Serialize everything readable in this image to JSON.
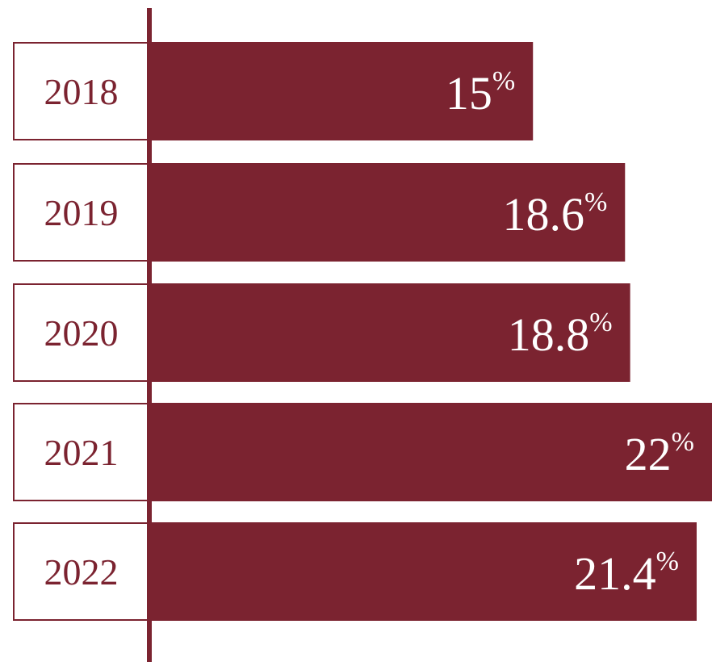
{
  "chart_data": {
    "type": "bar",
    "orientation": "horizontal",
    "categories": [
      "2018",
      "2019",
      "2020",
      "2021",
      "2022"
    ],
    "values": [
      15,
      18.6,
      18.8,
      22,
      21.4
    ],
    "value_labels": [
      "15",
      "18.6",
      "18.8",
      "22",
      "21.4"
    ],
    "unit": "%",
    "title": "",
    "xlabel": "",
    "ylabel": "",
    "xlim": [
      0,
      22
    ],
    "grid": false,
    "legend": "none",
    "colors": {
      "bar": "#7b2330",
      "label_text": "#7b2330",
      "value_text": "#ffffff",
      "axis": "#7b2330"
    }
  }
}
